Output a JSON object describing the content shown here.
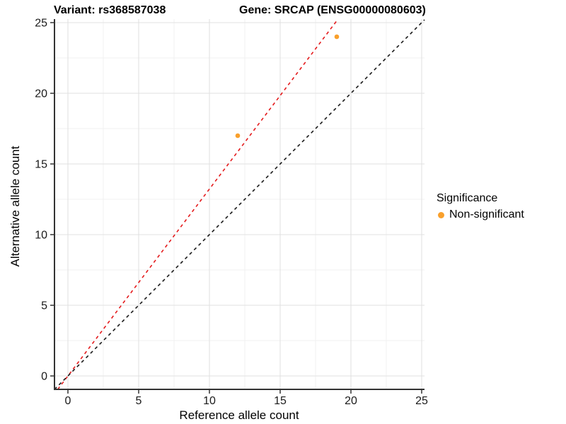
{
  "chart_data": {
    "type": "scatter",
    "title_left": "Variant: rs368587038",
    "title_right": "Gene: SRCAP (ENSG00000080603)",
    "xlabel": "Reference allele count",
    "ylabel": "Alternative allele count",
    "xlim": [
      -0.95,
      25.2
    ],
    "ylim": [
      -0.95,
      25.25
    ],
    "x_ticks": [
      0,
      5,
      10,
      15,
      20,
      25
    ],
    "y_ticks": [
      0,
      5,
      10,
      15,
      20,
      25
    ],
    "x_minor_ticks": [
      2.5,
      7.5,
      12.5,
      17.5,
      22.5
    ],
    "y_minor_ticks": [
      2.5,
      7.5,
      12.5,
      17.5,
      22.5
    ],
    "points": [
      {
        "x": 12,
        "y": 17,
        "significance": "Non-significant"
      },
      {
        "x": 19,
        "y": 24,
        "significance": "Non-significant"
      }
    ],
    "point_color": "#F9A02C",
    "point_radius": 3.3,
    "lines": [
      {
        "name": "fitted-ratio-line",
        "slope": 1.3226,
        "intercept": 0,
        "color": "#E41A1C",
        "style": "dashed"
      },
      {
        "name": "identity-line",
        "slope": 1,
        "intercept": 0,
        "color": "#1A1A1A",
        "style": "dashed"
      }
    ],
    "legend": {
      "title": "Significance",
      "position": "right",
      "items": [
        {
          "label": "Non-significant",
          "color": "#F9A02C"
        }
      ]
    },
    "grid": {
      "major_color": "#E2E2E2",
      "minor_color": "#F0F0F0",
      "axis_line_color": "#333333",
      "tick_color": "#333333",
      "tick_label_color": "#1A1A1A"
    }
  }
}
